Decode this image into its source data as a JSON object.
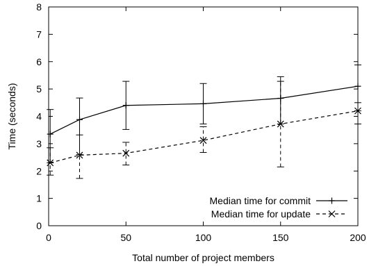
{
  "chart_data": {
    "type": "line",
    "title": "",
    "xlabel": "Total number of project members",
    "ylabel": "Time (seconds)",
    "xlim": [
      0,
      200
    ],
    "ylim": [
      0,
      8
    ],
    "x_ticks": [
      "0",
      "50",
      "100",
      "150",
      "200"
    ],
    "y_ticks": [
      "0",
      "1",
      "2",
      "3",
      "4",
      "5",
      "6",
      "7",
      "8"
    ],
    "grid": false,
    "legend_position": "bottom-right",
    "series": [
      {
        "name": "Median time for commit",
        "marker": "plus",
        "line_style": "solid",
        "color": "#000000",
        "points": [
          {
            "x": 1,
            "y": 3.35,
            "low": 2.3,
            "high": 4.25
          },
          {
            "x": 20,
            "y": 3.88,
            "low": 2.6,
            "high": 4.67
          },
          {
            "x": 50,
            "y": 4.4,
            "low": 3.52,
            "high": 5.28
          },
          {
            "x": 100,
            "y": 4.46,
            "low": 3.72,
            "high": 5.2
          },
          {
            "x": 150,
            "y": 4.66,
            "low": 3.72,
            "high": 5.45
          },
          {
            "x": 200,
            "y": 5.1,
            "low": 4.2,
            "high": 5.88
          }
        ]
      },
      {
        "name": "Median time for update",
        "marker": "x",
        "line_style": "dashed",
        "color": "#000000",
        "points": [
          {
            "x": 1,
            "y": 2.3,
            "low": 1.85,
            "high": 2.85
          },
          {
            "x": 20,
            "y": 2.58,
            "low": 1.73,
            "high": 3.32
          },
          {
            "x": 50,
            "y": 2.65,
            "low": 2.22,
            "high": 3.05
          },
          {
            "x": 100,
            "y": 3.12,
            "low": 2.68,
            "high": 3.62
          },
          {
            "x": 150,
            "y": 3.72,
            "low": 2.15,
            "high": 5.28
          },
          {
            "x": 200,
            "y": 4.2,
            "low": 3.72,
            "high": 4.5
          }
        ]
      }
    ]
  }
}
